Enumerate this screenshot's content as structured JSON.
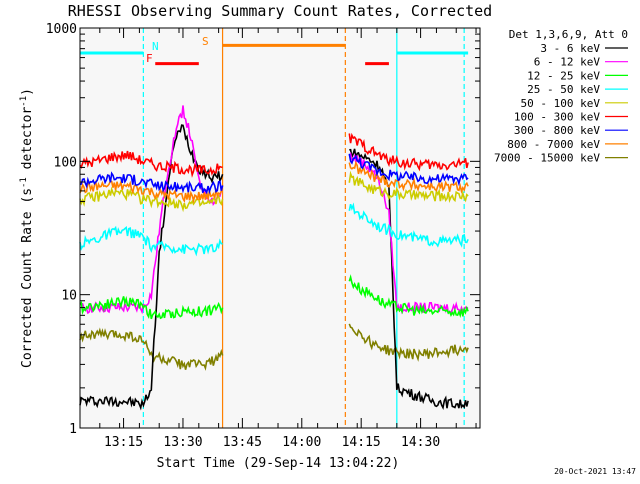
{
  "chart_data": {
    "type": "line",
    "title": "RHESSI Observing Summary Count Rates, Corrected",
    "xlabel": "Start Time (29-Sep-14 13:04:22)",
    "ylabel": "Corrected Count Rate (s",
    "ylabel_sup": "-1",
    "ylabel_tail": " detector",
    "ylabel_sup2": "-1",
    "ylabel_end": ")",
    "yscale": "log",
    "ylim": [
      1,
      1000
    ],
    "ytick_labels": [
      "1",
      "10",
      "100",
      "1000"
    ],
    "xlim": [
      "13:04",
      "14:45"
    ],
    "xtick_labels": [
      "13:15",
      "13:30",
      "13:45",
      "14:00",
      "14:15",
      "14:30"
    ],
    "legend_header": "Det 1,3,6,9, Att 0",
    "legend_position": "right",
    "timestamp": "20-Oct-2021 13:47",
    "flags": {
      "n_label": "N",
      "f_label": "F",
      "s_label": "S"
    },
    "series": [
      {
        "name": "3 - 6 keV",
        "color": "#000000",
        "segments": [
          [
            [
              "13:04",
              1.6
            ],
            [
              "13:10",
              1.6
            ],
            [
              "13:15",
              1.6
            ],
            [
              "13:20",
              1.5
            ],
            [
              "13:22",
              2
            ],
            [
              "13:24",
              20
            ],
            [
              "13:26",
              60
            ],
            [
              "13:28",
              150
            ],
            [
              "13:30",
              180
            ],
            [
              "13:32",
              120
            ],
            [
              "13:34",
              90
            ],
            [
              "13:36",
              80
            ],
            [
              "13:38",
              75
            ],
            [
              "13:40",
              80
            ]
          ],
          [
            [
              "14:12",
              120
            ],
            [
              "14:15",
              110
            ],
            [
              "14:18",
              100
            ],
            [
              "14:20",
              90
            ],
            [
              "14:22",
              60
            ],
            [
              "14:24",
              2
            ],
            [
              "14:28",
              1.8
            ],
            [
              "14:33",
              1.6
            ],
            [
              "14:40",
              1.5
            ],
            [
              "14:42",
              1.6
            ]
          ]
        ]
      },
      {
        "name": "6 - 12 keV",
        "color": "#ff00ff",
        "segments": [
          [
            [
              "13:04",
              8
            ],
            [
              "13:10",
              8
            ],
            [
              "13:15",
              8
            ],
            [
              "13:20",
              8
            ],
            [
              "13:22",
              10
            ],
            [
              "13:24",
              30
            ],
            [
              "13:26",
              80
            ],
            [
              "13:28",
              160
            ],
            [
              "13:30",
              250
            ],
            [
              "13:32",
              150
            ],
            [
              "13:34",
              70
            ],
            [
              "13:36",
              55
            ],
            [
              "13:38",
              50
            ],
            [
              "13:40",
              60
            ]
          ],
          [
            [
              "14:12",
              110
            ],
            [
              "14:15",
              100
            ],
            [
              "14:18",
              85
            ],
            [
              "14:20",
              65
            ],
            [
              "14:22",
              40
            ],
            [
              "14:24",
              8
            ],
            [
              "14:30",
              8
            ],
            [
              "14:36",
              8
            ],
            [
              "14:42",
              8
            ]
          ]
        ]
      },
      {
        "name": "12 - 25 keV",
        "color": "#00ff00",
        "segments": [
          [
            [
              "13:04",
              8
            ],
            [
              "13:10",
              8.5
            ],
            [
              "13:15",
              9
            ],
            [
              "13:20",
              8.5
            ],
            [
              "13:22",
              7
            ],
            [
              "13:25",
              7
            ],
            [
              "13:30",
              7.5
            ],
            [
              "13:35",
              7.5
            ],
            [
              "13:40",
              8
            ]
          ],
          [
            [
              "14:12",
              13
            ],
            [
              "14:15",
              11
            ],
            [
              "14:18",
              10
            ],
            [
              "14:21",
              8.5
            ],
            [
              "14:25",
              8
            ],
            [
              "14:30",
              7.5
            ],
            [
              "14:36",
              7.5
            ],
            [
              "14:42",
              7.5
            ]
          ]
        ]
      },
      {
        "name": "25 - 50 keV",
        "color": "#00ffff",
        "segments": [
          [
            [
              "13:04",
              24
            ],
            [
              "13:08",
              26
            ],
            [
              "13:12",
              29
            ],
            [
              "13:16",
              30
            ],
            [
              "13:20",
              27
            ],
            [
              "13:22",
              23
            ],
            [
              "13:26",
              23
            ],
            [
              "13:30",
              22
            ],
            [
              "13:34",
              22
            ],
            [
              "13:38",
              22
            ],
            [
              "13:40",
              24
            ]
          ],
          [
            [
              "14:12",
              45
            ],
            [
              "14:15",
              40
            ],
            [
              "14:18",
              35
            ],
            [
              "14:21",
              31
            ],
            [
              "14:25",
              28
            ],
            [
              "14:30",
              26
            ],
            [
              "14:36",
              25
            ],
            [
              "14:42",
              26
            ]
          ]
        ]
      },
      {
        "name": "50 - 100 keV",
        "color": "#cccc00",
        "segments": [
          [
            [
              "13:04",
              52
            ],
            [
              "13:08",
              54
            ],
            [
              "13:12",
              58
            ],
            [
              "13:16",
              57
            ],
            [
              "13:20",
              52
            ],
            [
              "13:24",
              50
            ],
            [
              "13:30",
              48
            ],
            [
              "13:36",
              48
            ],
            [
              "13:40",
              52
            ]
          ],
          [
            [
              "14:12",
              75
            ],
            [
              "14:15",
              68
            ],
            [
              "14:18",
              62
            ],
            [
              "14:22",
              58
            ],
            [
              "14:27",
              56
            ],
            [
              "14:32",
              55
            ],
            [
              "14:37",
              55
            ],
            [
              "14:42",
              55
            ]
          ]
        ]
      },
      {
        "name": "100 - 300 keV",
        "color": "#ff0000",
        "segments": [
          [
            [
              "13:04",
              95
            ],
            [
              "13:08",
              100
            ],
            [
              "13:12",
              108
            ],
            [
              "13:16",
              112
            ],
            [
              "13:20",
              100
            ],
            [
              "13:24",
              92
            ],
            [
              "13:30",
              88
            ],
            [
              "13:36",
              85
            ],
            [
              "13:40",
              90
            ]
          ],
          [
            [
              "14:12",
              150
            ],
            [
              "14:15",
              135
            ],
            [
              "14:18",
              118
            ],
            [
              "14:21",
              105
            ],
            [
              "14:25",
              98
            ],
            [
              "14:30",
              95
            ],
            [
              "14:36",
              94
            ],
            [
              "14:42",
              98
            ]
          ]
        ]
      },
      {
        "name": "300 - 800 keV",
        "color": "#0000ff",
        "segments": [
          [
            [
              "13:04",
              70
            ],
            [
              "13:08",
              73
            ],
            [
              "13:12",
              76
            ],
            [
              "13:16",
              75
            ],
            [
              "13:20",
              70
            ],
            [
              "13:24",
              66
            ],
            [
              "13:30",
              64
            ],
            [
              "13:36",
              63
            ],
            [
              "13:40",
              66
            ]
          ],
          [
            [
              "14:12",
              108
            ],
            [
              "14:15",
              98
            ],
            [
              "14:18",
              88
            ],
            [
              "14:22",
              80
            ],
            [
              "14:27",
              76
            ],
            [
              "14:32",
              74
            ],
            [
              "14:37",
              74
            ],
            [
              "14:42",
              75
            ]
          ]
        ]
      },
      {
        "name": "800 - 7000 keV",
        "color": "#ff8000",
        "segments": [
          [
            [
              "13:04",
              62
            ],
            [
              "13:08",
              65
            ],
            [
              "13:12",
              66
            ],
            [
              "13:16",
              65
            ],
            [
              "13:20",
              62
            ],
            [
              "13:24",
              57
            ],
            [
              "13:30",
              55
            ],
            [
              "13:36",
              55
            ],
            [
              "13:40",
              60
            ]
          ],
          [
            [
              "14:12",
              95
            ],
            [
              "14:15",
              85
            ],
            [
              "14:18",
              77
            ],
            [
              "14:22",
              70
            ],
            [
              "14:27",
              67
            ],
            [
              "14:32",
              65
            ],
            [
              "14:37",
              64
            ],
            [
              "14:42",
              65
            ]
          ]
        ]
      },
      {
        "name": "7000 - 15000 keV",
        "color": "#808000",
        "segments": [
          [
            [
              "13:04",
              5
            ],
            [
              "13:08",
              5
            ],
            [
              "13:12",
              5
            ],
            [
              "13:16",
              5
            ],
            [
              "13:20",
              4.5
            ],
            [
              "13:22",
              3.5
            ],
            [
              "13:26",
              3.2
            ],
            [
              "13:30",
              3
            ],
            [
              "13:34",
              3
            ],
            [
              "13:38",
              3.2
            ],
            [
              "13:40",
              3.5
            ]
          ],
          [
            [
              "14:12",
              6
            ],
            [
              "14:15",
              5
            ],
            [
              "14:18",
              4.3
            ],
            [
              "14:22",
              3.8
            ],
            [
              "14:27",
              3.6
            ],
            [
              "14:32",
              3.6
            ],
            [
              "14:37",
              3.8
            ],
            [
              "14:42",
              4
            ]
          ]
        ]
      }
    ],
    "verticals": [
      {
        "time": "13:20",
        "color": "#00ffff",
        "style": "dashed"
      },
      {
        "time": "13:40",
        "color": "#ff8000",
        "style": "solid"
      },
      {
        "time": "14:11",
        "color": "#ff8000",
        "style": "dashed"
      },
      {
        "time": "14:24",
        "color": "#00ffff",
        "style": "solid"
      },
      {
        "time": "14:41",
        "color": "#00ffff",
        "style": "dashed"
      }
    ],
    "bars": [
      {
        "start": "13:04",
        "end": "13:20",
        "value": 650,
        "color": "#00ffff"
      },
      {
        "start": "14:24",
        "end": "14:42",
        "value": 650,
        "color": "#00ffff"
      },
      {
        "start": "13:40",
        "end": "14:11",
        "value": 740,
        "color": "#ff8000"
      },
      {
        "start": "13:23",
        "end": "13:34",
        "value": 540,
        "color": "#ff0000"
      },
      {
        "start": "14:16",
        "end": "14:22",
        "value": 540,
        "color": "#ff0000"
      }
    ]
  }
}
